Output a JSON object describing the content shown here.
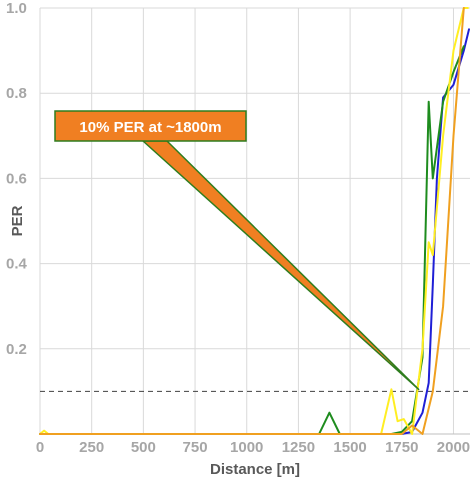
{
  "chart_data": {
    "type": "line",
    "xlabel": "Distance [m]",
    "ylabel": "PER",
    "xlim": [
      0,
      2080
    ],
    "ylim": [
      0,
      1.0
    ],
    "x_ticks": [
      0,
      250,
      500,
      750,
      1000,
      1250,
      1500,
      1750,
      2000
    ],
    "y_ticks": [
      0.2,
      0.4,
      0.6,
      0.8,
      1.0
    ],
    "y_tick_labels": [
      "0.2",
      "0.4",
      "0.6",
      "0.8",
      "1.0"
    ],
    "grid": true,
    "reference_line": {
      "y": 0.1,
      "style": "dashed"
    },
    "annotation": {
      "text": "10% PER at ~1800m",
      "anchor": [
        60,
        0.73
      ],
      "target": [
        1880,
        0.1
      ],
      "color": "#f07f22"
    },
    "series": [
      {
        "color": "#1f1fd6",
        "x": [
          0,
          1700,
          1750,
          1800,
          1850,
          1880,
          1900,
          1920,
          1950,
          2000,
          2050,
          2075
        ],
        "y": [
          0,
          0,
          0,
          0.005,
          0.05,
          0.12,
          0.35,
          0.6,
          0.79,
          0.82,
          0.9,
          0.95
        ]
      },
      {
        "color": "#1e8c1e",
        "x": [
          0,
          1350,
          1400,
          1450,
          1700,
          1750,
          1800,
          1850,
          1880,
          1900,
          1950,
          2000,
          2050
        ],
        "y": [
          0,
          0,
          0.05,
          0,
          0,
          0.005,
          0.03,
          0.18,
          0.78,
          0.6,
          0.78,
          0.85,
          0.91
        ]
      },
      {
        "color": "#ffee22",
        "x": [
          0,
          20,
          40,
          1650,
          1700,
          1730,
          1760,
          1800,
          1850,
          1880,
          1900,
          1950,
          2000,
          2050,
          2070
        ],
        "y": [
          0,
          0.008,
          0,
          0,
          0.105,
          0.03,
          0.035,
          0,
          0.2,
          0.45,
          0.42,
          0.7,
          0.9,
          1.0,
          1.0
        ]
      },
      {
        "color": "#f0a020",
        "x": [
          0,
          1750,
          1800,
          1850,
          1900,
          1950,
          2000,
          2050
        ],
        "y": [
          0,
          0,
          0.02,
          0.0,
          0.1,
          0.3,
          0.7,
          1.0
        ]
      }
    ]
  }
}
